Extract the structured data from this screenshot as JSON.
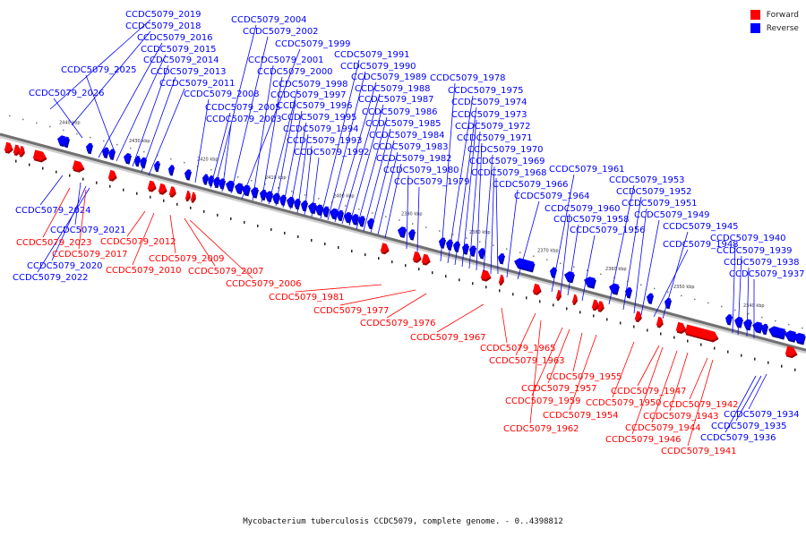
{
  "caption": "Mycobacterium tuberculosis CCDC5079, complete genome. - 0..4398812",
  "legend": {
    "forward_label": "Forward",
    "reverse_label": "Reverse",
    "forward_color": "#ff0000",
    "reverse_color": "#0000ff"
  },
  "ticks": [
    "2440 kbp",
    "2430 kbp",
    "2420 kbp",
    "2410 kbp",
    "2400 kbp",
    "2390 kbp",
    "2380 kbp",
    "2370 kbp",
    "2360 kbp",
    "2350 kbp",
    "2340 kbp"
  ],
  "reverse_genes": [
    "CCDC5079_2026",
    "CCDC5079_2025",
    "CCDC5079_2019",
    "CCDC5079_2018",
    "CCDC5079_2016",
    "CCDC5079_2015",
    "CCDC5079_2014",
    "CCDC5079_2013",
    "CCDC5079_2011",
    "CCDC5079_2008",
    "CCDC5079_2005",
    "CCDC5079_2003",
    "CCDC5079_2004",
    "CCDC5079_2002",
    "CCDC5079_1999",
    "CCDC5079_2001",
    "CCDC5079_2000",
    "CCDC5079_1998",
    "CCDC5079_1997",
    "CCDC5079_1996",
    "CCDC5079_1995",
    "CCDC5079_1994",
    "CCDC5079_1993",
    "CCDC5079_1992",
    "CCDC5079_1991",
    "CCDC5079_1990",
    "CCDC5079_1989",
    "CCDC5079_1988",
    "CCDC5079_1987",
    "CCDC5079_1986",
    "CCDC5079_1985",
    "CCDC5079_1984",
    "CCDC5079_1983",
    "CCDC5079_1982",
    "CCDC5079_1980",
    "CCDC5079_1979",
    "CCDC5079_1978",
    "CCDC5079_1975",
    "CCDC5079_1974",
    "CCDC5079_1973",
    "CCDC5079_1972",
    "CCDC5079_1971",
    "CCDC5079_1970",
    "CCDC5079_1969",
    "CCDC5079_1968",
    "CCDC5079_1966",
    "CCDC5079_1964",
    "CCDC5079_1961",
    "CCDC5079_1960",
    "CCDC5079_1958",
    "CCDC5079_1956",
    "CCDC5079_1953",
    "CCDC5079_1952",
    "CCDC5079_1951",
    "CCDC5079_1949",
    "CCDC5079_1948",
    "CCDC5079_1945",
    "CCDC5079_1940",
    "CCDC5079_1939",
    "CCDC5079_1938",
    "CCDC5079_1937",
    "CCDC5079_2024",
    "CCDC5079_2021",
    "CCDC5079_2020",
    "CCDC5079_2022",
    "CCDC5079_1934",
    "CCDC5079_1935",
    "CCDC5079_1936"
  ],
  "forward_genes": [
    "CCDC5079_2023",
    "CCDC5079_2017",
    "CCDC5079_2012",
    "CCDC5079_2010",
    "CCDC5079_2009",
    "CCDC5079_2007",
    "CCDC5079_2006",
    "CCDC5079_1981",
    "CCDC5079_1977",
    "CCDC5079_1976",
    "CCDC5079_1967",
    "CCDC5079_1965",
    "CCDC5079_1963",
    "CCDC5079_1962",
    "CCDC5079_1959",
    "CCDC5079_1957",
    "CCDC5079_1955",
    "CCDC5079_1954",
    "CCDC5079_1950",
    "CCDC5079_1947",
    "CCDC5079_1946",
    "CCDC5079_1944",
    "CCDC5079_1943",
    "CCDC5079_1942",
    "CCDC5079_1941"
  ]
}
